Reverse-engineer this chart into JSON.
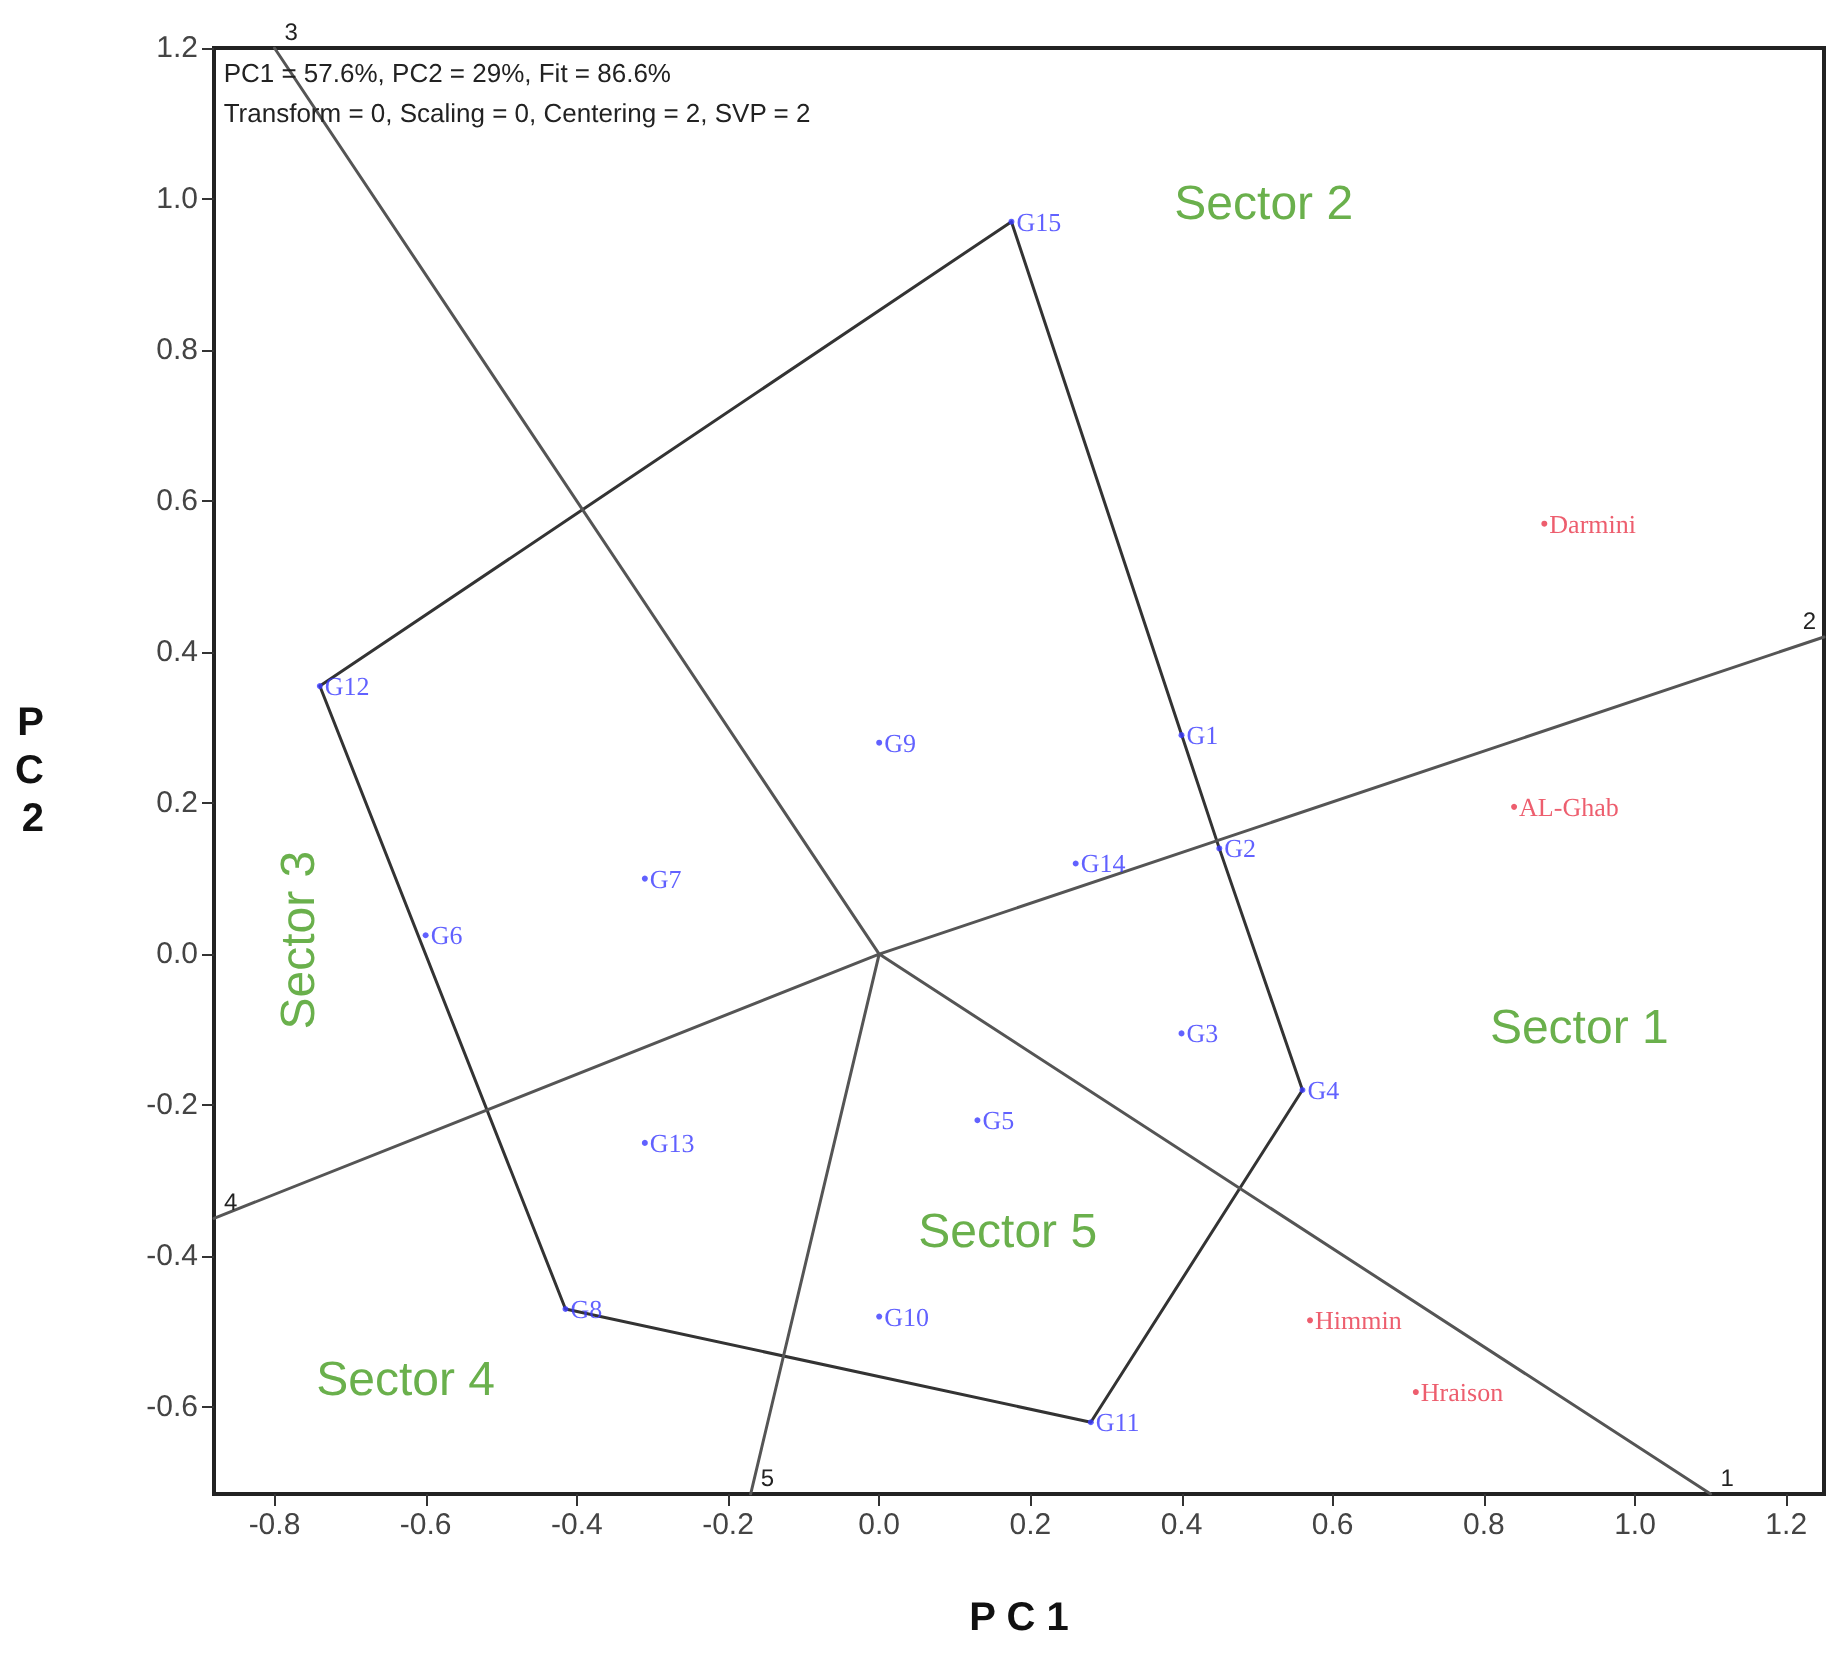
{
  "chart_data": {
    "type": "scatter",
    "xlabel": "P C 1",
    "ylabel": "P C 2",
    "xlim": [
      -0.88,
      1.25
    ],
    "ylim": [
      -0.715,
      1.2
    ],
    "xticks": [
      -0.8,
      -0.6,
      -0.4,
      -0.2,
      {
        "value": 0,
        "label": "0.0"
      },
      0.2,
      0.4,
      0.6,
      0.8,
      {
        "value": 1,
        "label": "1.0"
      },
      1.2
    ],
    "yticks": [
      -0.6,
      -0.4,
      -0.2,
      {
        "value": 0,
        "label": "0.0"
      },
      0.2,
      0.4,
      0.6,
      0.8,
      {
        "value": 1,
        "label": "1.0"
      },
      1.2
    ],
    "marker": "none",
    "series": [
      {
        "type": "line",
        "color": "#333333",
        "x": [
          -0.74,
          0.175,
          0.45,
          0.56,
          null,
          -0.74,
          -0.415,
          0.28,
          0.56
        ],
        "values": [
          0.355,
          0.97,
          0.14,
          -0.18,
          null,
          0.355,
          -0.47,
          -0.62,
          -0.18
        ]
      },
      {
        "type": "line",
        "color": "#555555",
        "x": [
          0,
          1.1,
          null,
          0,
          1.25,
          null,
          0,
          -0.8,
          null,
          0,
          -0.88,
          null,
          0,
          -0.17
        ],
        "values": [
          0,
          -0.715,
          null,
          0,
          0.42,
          null,
          0,
          1.2,
          null,
          0,
          -0.35,
          null,
          0,
          -0.715
        ]
      },
      {
        "type": "scatter",
        "marker": "circle",
        "color": "#3a3aff",
        "x": [
          0.4,
          0.45,
          0.4,
          0.56,
          0.13,
          -0.6,
          -0.31,
          -0.415,
          0.0,
          0.0,
          0.28,
          -0.74,
          -0.31,
          0.26,
          0.175
        ],
        "values": [
          0.29,
          0.14,
          -0.105,
          -0.18,
          -0.22,
          0.025,
          0.1,
          -0.47,
          0.28,
          -0.48,
          -0.62,
          0.355,
          -0.25,
          0.12,
          0.97
        ],
        "value_labels": [
          "G1",
          "G2",
          "G3",
          "G4",
          "G5",
          "G6",
          "G7",
          "G8",
          "G9",
          "G10",
          "G11",
          "G12",
          "G13",
          "G14",
          "G15"
        ]
      },
      {
        "type": "scatter",
        "marker": "circle",
        "color": "#e8364a",
        "x": [
          0.88,
          0.84,
          0.57,
          0.71
        ],
        "values": [
          0.57,
          0.195,
          -0.485,
          -0.58
        ],
        "value_labels": [
          "Darmini",
          "AL-Ghab",
          "Himmin",
          "Hraison"
        ]
      }
    ],
    "annotations": [
      "PC1 = 57.6%, PC2 = 29%, Fit = 86.6%",
      "Transform = 0, Scaling = 0, Centering = 2, SVP = 2",
      "Sector 1",
      "Sector 2",
      "Sector 3",
      "Sector 4",
      "Sector 5",
      {
        "text": "1",
        "x": 1.1,
        "y": -0.715
      },
      {
        "text": "2",
        "x": 1.25,
        "y": 0.42
      },
      {
        "text": "3",
        "x": -0.8,
        "y": 1.2
      },
      {
        "text": "4",
        "x": -0.88,
        "y": -0.35
      },
      {
        "text": "5",
        "x": -0.17,
        "y": -0.715
      }
    ]
  }
}
